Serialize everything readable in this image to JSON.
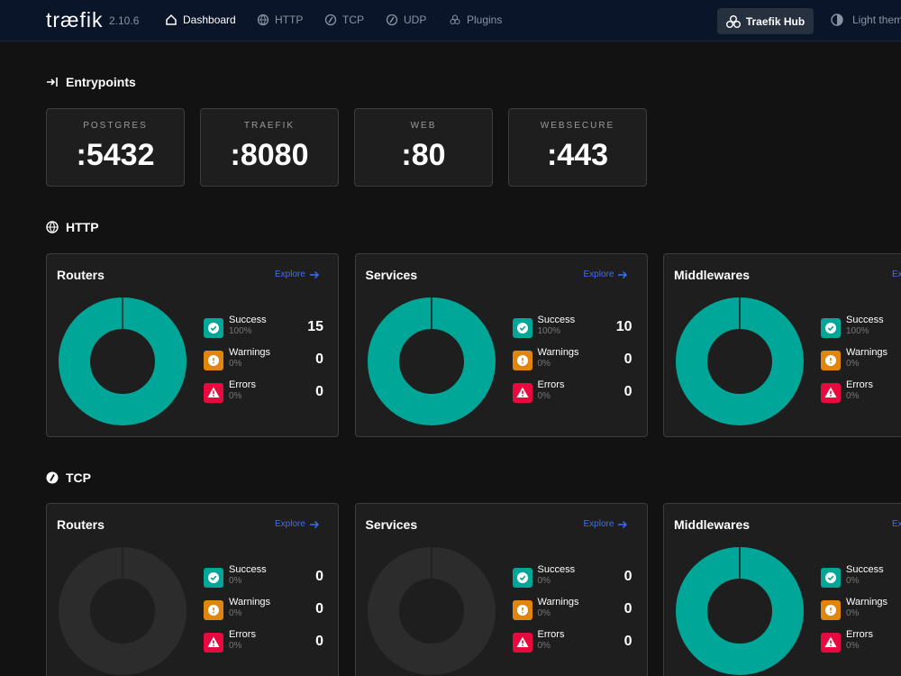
{
  "nav": {
    "logo": "træfik",
    "version": "2.10.6",
    "items": [
      "Dashboard",
      "HTTP",
      "TCP",
      "UDP",
      "Plugins"
    ],
    "hub": "Traefik Hub",
    "theme": "Light theme"
  },
  "entrypoints": {
    "title": "Entrypoints",
    "items": [
      {
        "name": "POSTGRES",
        "port": ":5432"
      },
      {
        "name": "TRAEFIK",
        "port": ":8080"
      },
      {
        "name": "WEB",
        "port": ":80"
      },
      {
        "name": "WEBSECURE",
        "port": ":443"
      }
    ]
  },
  "sections": [
    {
      "title": "HTTP",
      "cards": [
        {
          "title": "Routers",
          "explore": "Explore",
          "stats": [
            {
              "name": "Success",
              "percent": "100%",
              "count": 15
            },
            {
              "name": "Warnings",
              "percent": "0%",
              "count": 0
            },
            {
              "name": "Errors",
              "percent": "0%",
              "count": 0
            }
          ]
        },
        {
          "title": "Services",
          "explore": "Explore",
          "stats": [
            {
              "name": "Success",
              "percent": "100%",
              "count": 10
            },
            {
              "name": "Warnings",
              "percent": "0%",
              "count": 0
            },
            {
              "name": "Errors",
              "percent": "0%",
              "count": 0
            }
          ]
        },
        {
          "title": "Middlewares",
          "explore": "Explore",
          "stats": [
            {
              "name": "Success",
              "percent": "100%"
            },
            {
              "name": "Warnings",
              "percent": "0%"
            },
            {
              "name": "Errors",
              "percent": "0%"
            }
          ]
        }
      ]
    },
    {
      "title": "TCP",
      "cards": [
        {
          "title": "Routers",
          "explore": "Explore",
          "stats": [
            {
              "name": "Success",
              "percent": "0%",
              "count": 0
            },
            {
              "name": "Warnings",
              "percent": "0%",
              "count": 0
            },
            {
              "name": "Errors",
              "percent": "0%",
              "count": 0
            }
          ]
        },
        {
          "title": "Services",
          "explore": "Explore",
          "stats": [
            {
              "name": "Success",
              "percent": "0%",
              "count": 0
            },
            {
              "name": "Warnings",
              "percent": "0%",
              "count": 0
            },
            {
              "name": "Errors",
              "percent": "0%",
              "count": 0
            }
          ]
        },
        {
          "title": "Middlewares",
          "explore": "Explore",
          "stats": [
            {
              "name": "Success",
              "percent": "0%"
            },
            {
              "name": "Warnings",
              "percent": "0%"
            },
            {
              "name": "Errors",
              "percent": "0%"
            }
          ]
        }
      ]
    }
  ]
}
